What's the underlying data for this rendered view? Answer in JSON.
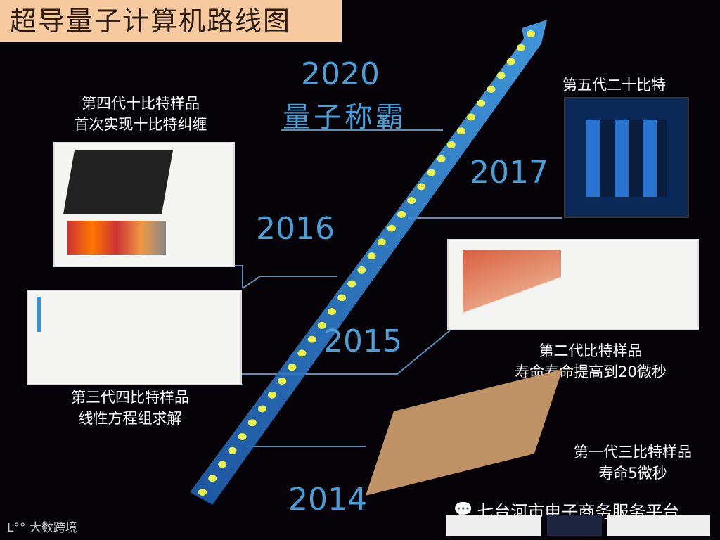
{
  "title": "超导量子计算机路线图",
  "milestones": [
    {
      "year": "2020",
      "caption": [
        "量子称霸"
      ]
    },
    {
      "year": "2017",
      "caption": [
        "第五代二十比特"
      ]
    },
    {
      "year": "2016",
      "caption": [
        "第四代十比特样品",
        "首次实现十比特纠缠"
      ]
    },
    {
      "year": "2015",
      "caption": [
        "第三代四比特样品",
        "线性方程组求解"
      ]
    },
    {
      "year": "2015",
      "caption": [
        "第二代比特样品",
        "寿命寿命提高到20微秒"
      ]
    },
    {
      "year": "2014",
      "caption": [
        "第一代三比特样品",
        "寿命5微秒"
      ]
    }
  ],
  "footer": {
    "wechat": "七台河市电子商务服务平台",
    "watermark": "大数跨境"
  },
  "colors": {
    "title_bg": "#f6c99e",
    "year": "#4a9fd8",
    "arrow": "#2f7fd6",
    "dots": "#e8f24a"
  }
}
